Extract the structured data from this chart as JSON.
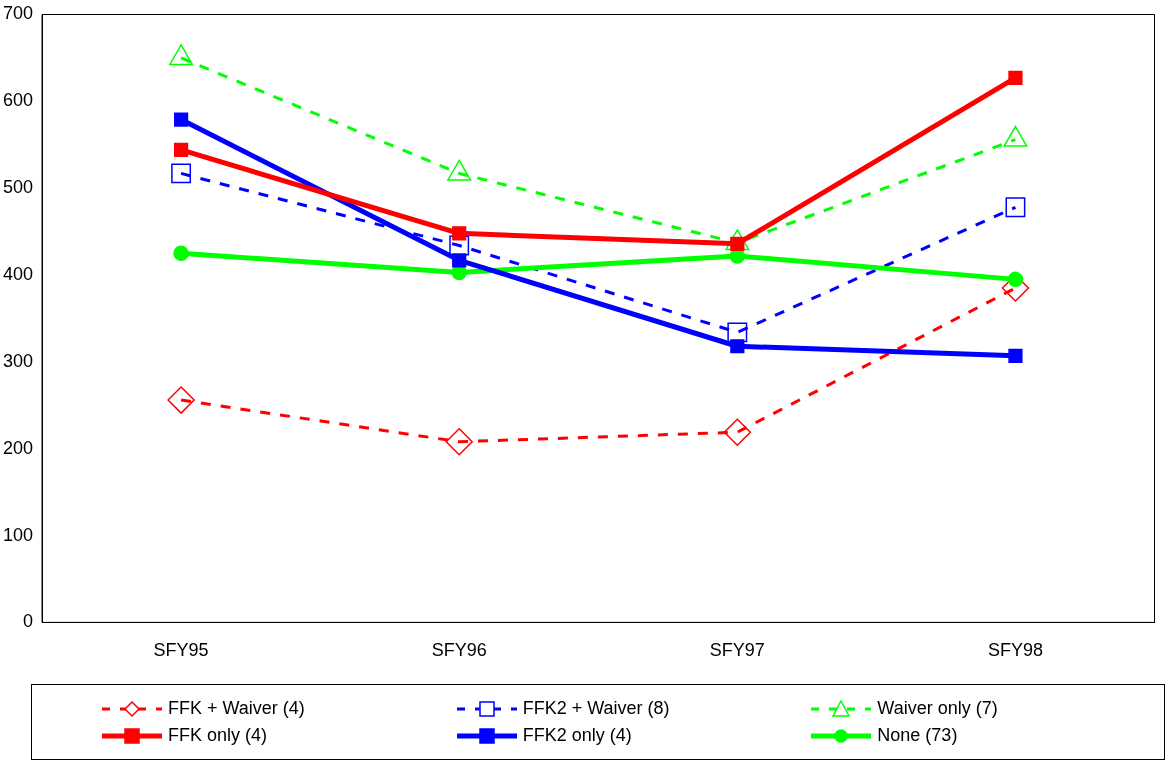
{
  "chart_data": {
    "type": "line",
    "categories": [
      "SFY95",
      "SFY96",
      "SFY97",
      "SFY98"
    ],
    "ylim": [
      0,
      700
    ],
    "yticks": [
      0,
      100,
      200,
      300,
      400,
      500,
      600,
      700
    ],
    "grid": false,
    "legend": "bottom",
    "series": [
      {
        "name": "FFK + Waiver (4)",
        "color": "#ff0000",
        "values": [
          256,
          208,
          219,
          385
        ],
        "marker": "diamond",
        "line_style": "dashed"
      },
      {
        "name": "FFK2 + Waiver (8)",
        "color": "#0000ff",
        "values": [
          517,
          434,
          334,
          478
        ],
        "marker": "square",
        "line_style": "dashed"
      },
      {
        "name": "Waiver only (7)",
        "color": "#00ff00",
        "values": [
          650,
          517,
          437,
          556
        ],
        "marker": "triangle",
        "line_style": "dashed"
      },
      {
        "name": "FFK only (4)",
        "color": "#ff0000",
        "values": [
          544,
          448,
          436,
          627
        ],
        "marker": "square",
        "line_style": "solid"
      },
      {
        "name": "FFK2 only (4)",
        "color": "#0000ff",
        "values": [
          579,
          417,
          318,
          307
        ],
        "marker": "square",
        "line_style": "solid"
      },
      {
        "name": "None (73)",
        "color": "#00ff00",
        "values": [
          425,
          403,
          422,
          395
        ],
        "marker": "circle",
        "line_style": "solid"
      }
    ]
  }
}
